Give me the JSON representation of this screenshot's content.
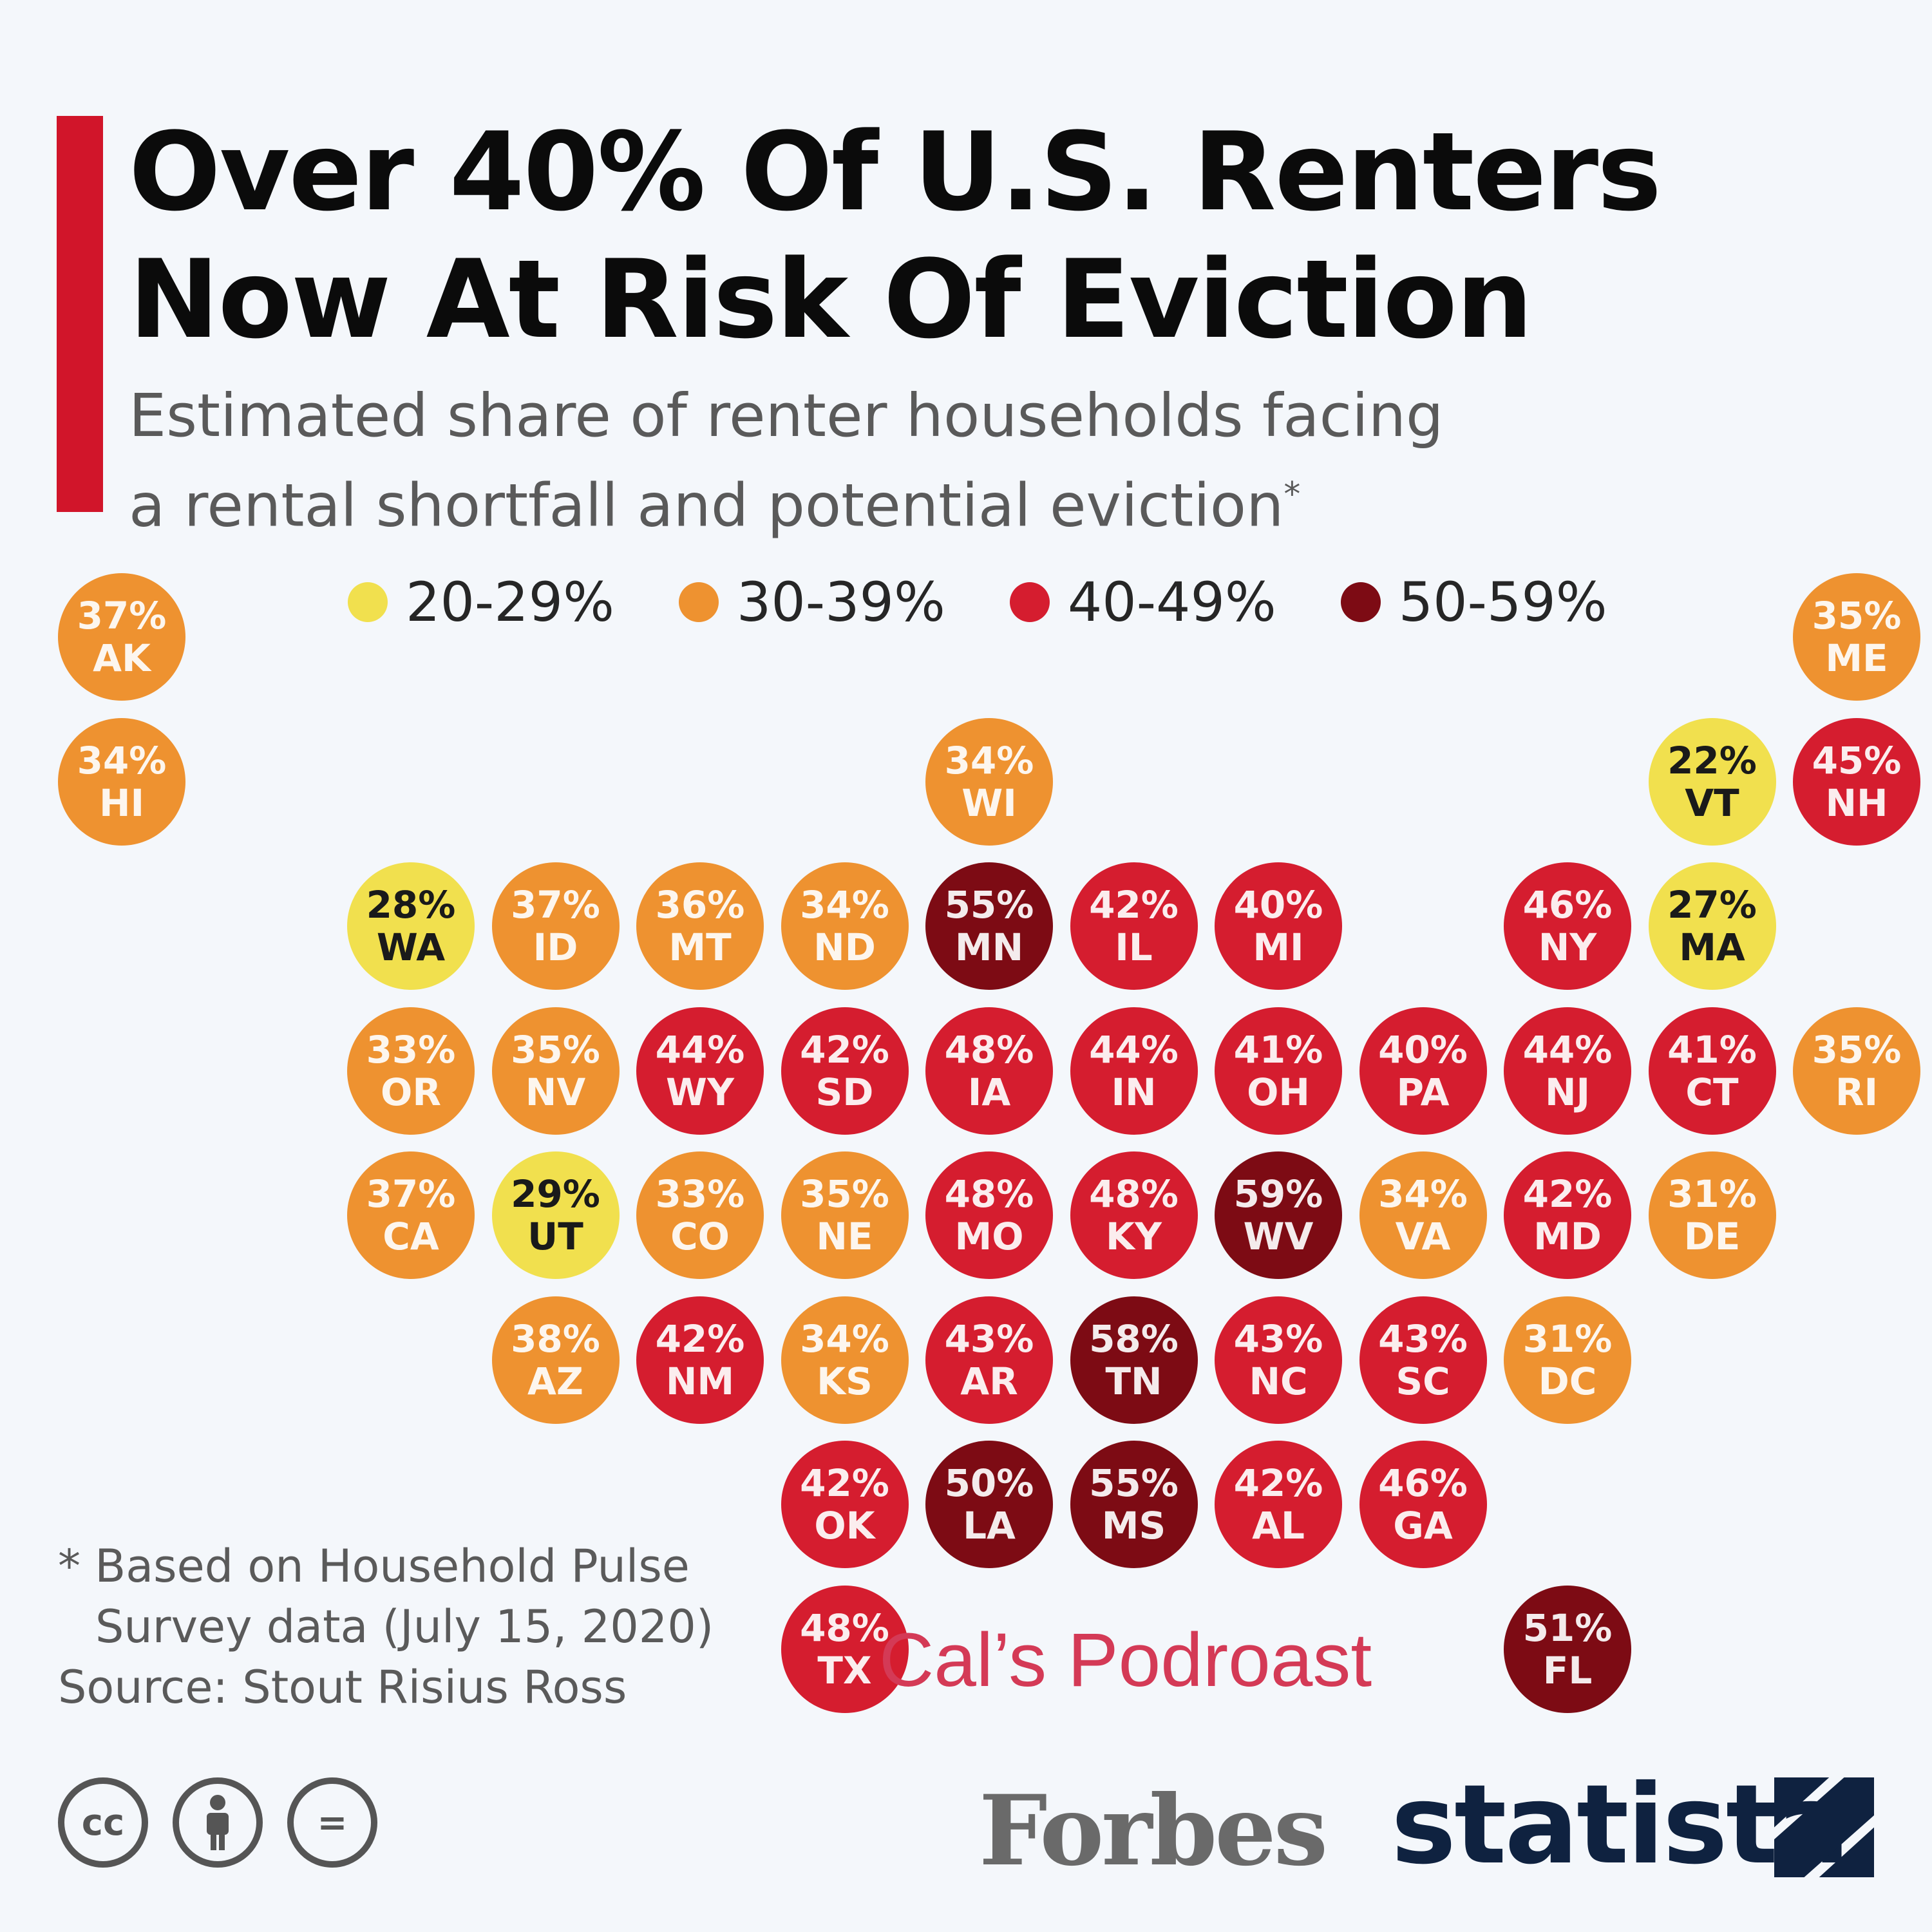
{
  "title_line1": "Over 40% Of U.S. Renters",
  "title_line2": "Now At Risk Of Eviction",
  "subtitle_line1": "Estimated share of renter households facing",
  "subtitle_line2": "a rental shortfall and potential eviction",
  "subtitle_mark": "*",
  "colors": {
    "accent": "#d1152a",
    "band_20_29": "#f1e04e",
    "band_30_39": "#ee9230",
    "band_40_49": "#d51d2f",
    "band_50_59": "#7d0b14"
  },
  "legend": [
    {
      "label": "20-29%",
      "color": "#f1e04e"
    },
    {
      "label": "30-39%",
      "color": "#ee9230"
    },
    {
      "label": "40-49%",
      "color": "#d51d2f"
    },
    {
      "label": "50-59%",
      "color": "#7d0b14"
    }
  ],
  "chart_data": {
    "type": "tile-map",
    "title": "Over 40% Of U.S. Renters Now At Risk Of Eviction",
    "subtitle": "Estimated share of renter households facing a rental shortfall and potential eviction*",
    "unit": "%",
    "bands": [
      "20-29%",
      "30-39%",
      "40-49%",
      "50-59%"
    ],
    "states": [
      {
        "abbr": "AK",
        "value": 37,
        "label": "37%"
      },
      {
        "abbr": "ME",
        "value": 35,
        "label": "35%"
      },
      {
        "abbr": "HI",
        "value": 34,
        "label": "34%"
      },
      {
        "abbr": "WI",
        "value": 34,
        "label": "34%"
      },
      {
        "abbr": "VT",
        "value": 22,
        "label": "22%"
      },
      {
        "abbr": "NH",
        "value": 45,
        "label": "45%"
      },
      {
        "abbr": "WA",
        "value": 28,
        "label": "28%"
      },
      {
        "abbr": "ID",
        "value": 37,
        "label": "37%"
      },
      {
        "abbr": "MT",
        "value": 36,
        "label": "36%"
      },
      {
        "abbr": "ND",
        "value": 34,
        "label": "34%"
      },
      {
        "abbr": "MN",
        "value": 55,
        "label": "55%"
      },
      {
        "abbr": "IL",
        "value": 42,
        "label": "42%"
      },
      {
        "abbr": "MI",
        "value": 40,
        "label": "40%"
      },
      {
        "abbr": "NY",
        "value": 46,
        "label": "46%"
      },
      {
        "abbr": "MA",
        "value": 27,
        "label": "27%"
      },
      {
        "abbr": "OR",
        "value": 33,
        "label": "33%"
      },
      {
        "abbr": "NV",
        "value": 35,
        "label": "35%"
      },
      {
        "abbr": "WY",
        "value": 44,
        "label": "44%"
      },
      {
        "abbr": "SD",
        "value": 42,
        "label": "42%"
      },
      {
        "abbr": "IA",
        "value": 48,
        "label": "48%"
      },
      {
        "abbr": "IN",
        "value": 44,
        "label": "44%"
      },
      {
        "abbr": "OH",
        "value": 41,
        "label": "41%"
      },
      {
        "abbr": "PA",
        "value": 40,
        "label": "40%"
      },
      {
        "abbr": "NJ",
        "value": 44,
        "label": "44%"
      },
      {
        "abbr": "CT",
        "value": 41,
        "label": "41%"
      },
      {
        "abbr": "RI",
        "value": 35,
        "label": "35%"
      },
      {
        "abbr": "CA",
        "value": 37,
        "label": "37%"
      },
      {
        "abbr": "UT",
        "value": 29,
        "label": "29%"
      },
      {
        "abbr": "CO",
        "value": 33,
        "label": "33%"
      },
      {
        "abbr": "NE",
        "value": 35,
        "label": "35%"
      },
      {
        "abbr": "MO",
        "value": 48,
        "label": "48%"
      },
      {
        "abbr": "KY",
        "value": 48,
        "label": "48%"
      },
      {
        "abbr": "WV",
        "value": 59,
        "label": "59%"
      },
      {
        "abbr": "VA",
        "value": 34,
        "label": "34%"
      },
      {
        "abbr": "MD",
        "value": 42,
        "label": "42%"
      },
      {
        "abbr": "DE",
        "value": 31,
        "label": "31%"
      },
      {
        "abbr": "AZ",
        "value": 38,
        "label": "38%"
      },
      {
        "abbr": "NM",
        "value": 42,
        "label": "42%"
      },
      {
        "abbr": "KS",
        "value": 34,
        "label": "34%"
      },
      {
        "abbr": "AR",
        "value": 43,
        "label": "43%"
      },
      {
        "abbr": "TN",
        "value": 58,
        "label": "58%"
      },
      {
        "abbr": "NC",
        "value": 43,
        "label": "43%"
      },
      {
        "abbr": "SC",
        "value": 43,
        "label": "43%"
      },
      {
        "abbr": "DC",
        "value": 31,
        "label": "31%"
      },
      {
        "abbr": "OK",
        "value": 42,
        "label": "42%"
      },
      {
        "abbr": "LA",
        "value": 50,
        "label": "50%"
      },
      {
        "abbr": "MS",
        "value": 55,
        "label": "55%"
      },
      {
        "abbr": "AL",
        "value": 42,
        "label": "42%"
      },
      {
        "abbr": "GA",
        "value": 46,
        "label": "46%"
      },
      {
        "abbr": "TX",
        "value": 48,
        "label": "48%"
      },
      {
        "abbr": "FL",
        "value": 51,
        "label": "51%"
      }
    ]
  },
  "footnote_line1": "* Based on Household Pulse",
  "footnote_line2": "Survey data (July 15, 2020)",
  "source": "Source: Stout Risius Ross",
  "watermark": "Cal’s Podroast",
  "license_icons": [
    {
      "name": "cc-icon",
      "text": "cc"
    },
    {
      "name": "attribution-icon",
      "text": ""
    },
    {
      "name": "no-derivatives-icon",
      "text": "="
    }
  ],
  "brand_forbes": "Forbes",
  "brand_statista": "statista"
}
